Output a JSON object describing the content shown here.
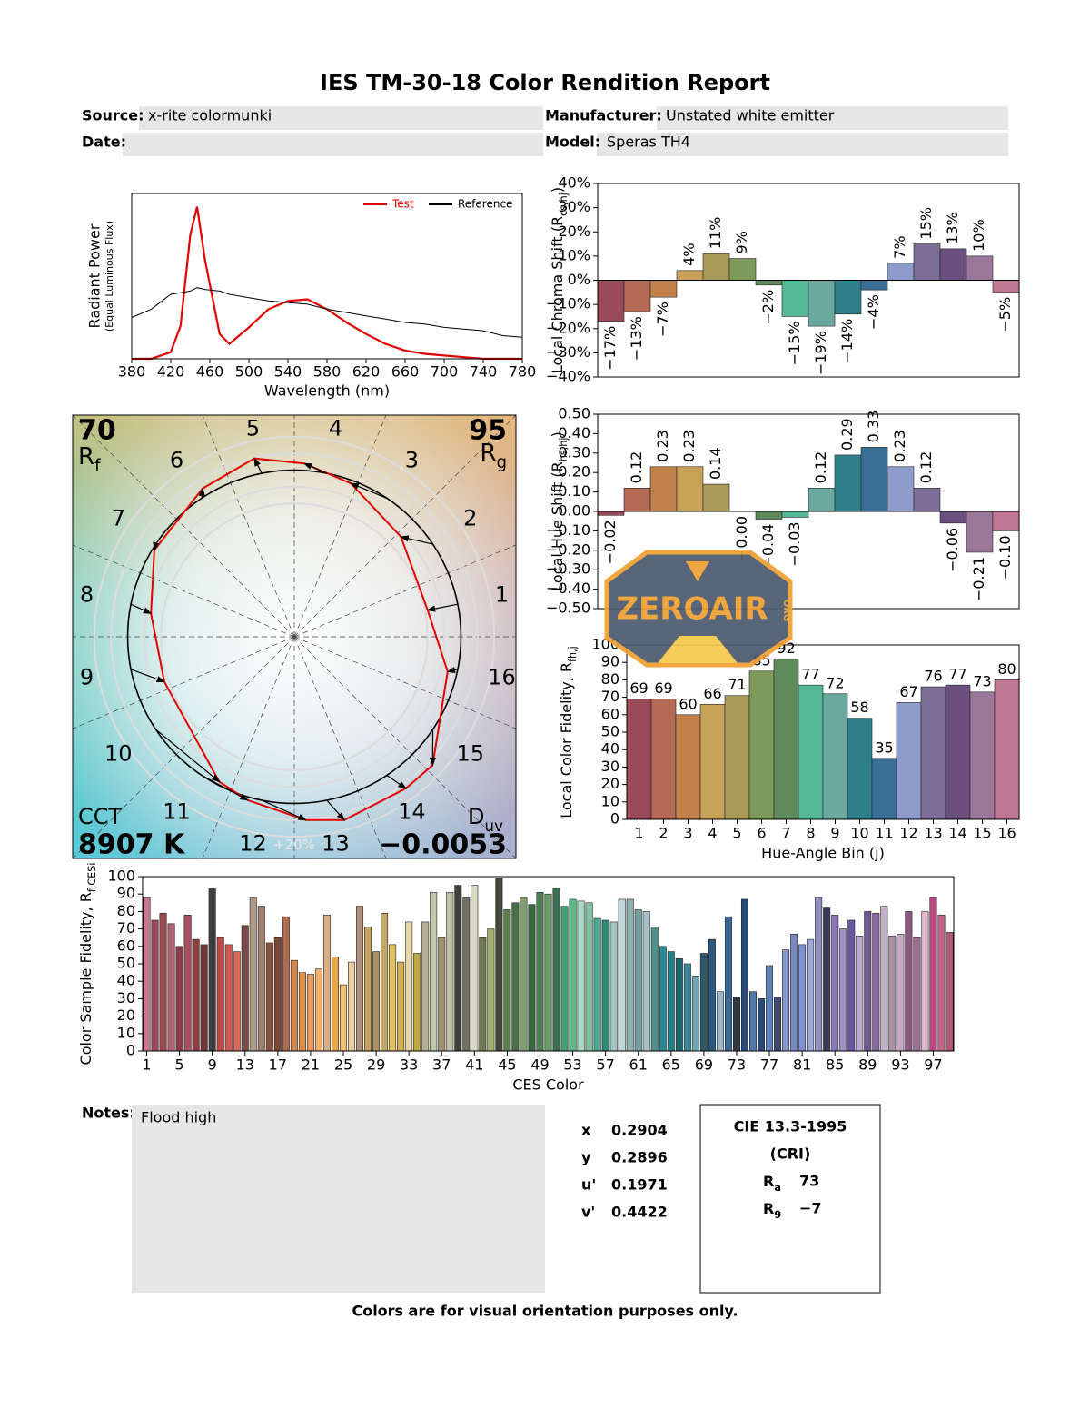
{
  "header": {
    "title": "IES TM-30-18 Color Rendition Report",
    "source_label": "Source:",
    "source": "x-rite colormunki",
    "manufacturer_label": "Manufacturer:",
    "manufacturer": "Unstated white emitter",
    "date_label": "Date:",
    "model_label": "Model:",
    "model": "Speras TH4"
  },
  "chart_data": [
    {
      "type": "line",
      "xlabel": "Wavelength (nm)",
      "ylabel": [
        "Radiant Power",
        "(Equal Luminous Flux)"
      ],
      "x": [
        380,
        400,
        420,
        430,
        440,
        447,
        455,
        470,
        480,
        500,
        520,
        540,
        560,
        580,
        600,
        620,
        640,
        660,
        680,
        700,
        720,
        740,
        760,
        780
      ],
      "series": [
        {
          "name": "Test",
          "color": "#e00000",
          "values": [
            0,
            0,
            0.04,
            0.2,
            0.75,
            0.92,
            0.6,
            0.15,
            0.09,
            0.19,
            0.3,
            0.35,
            0.36,
            0.3,
            0.22,
            0.15,
            0.09,
            0.05,
            0.03,
            0.02,
            0.01,
            0,
            0,
            0
          ]
        },
        {
          "name": "Reference",
          "color": "#000000",
          "values": [
            0.25,
            0.3,
            0.39,
            0.4,
            0.41,
            0.43,
            0.42,
            0.41,
            0.39,
            0.37,
            0.35,
            0.34,
            0.33,
            0.3,
            0.28,
            0.26,
            0.24,
            0.22,
            0.21,
            0.19,
            0.18,
            0.17,
            0.14,
            0.13
          ]
        }
      ],
      "xlim": [
        380,
        780
      ],
      "xticks": [
        380,
        420,
        460,
        500,
        540,
        580,
        620,
        660,
        700,
        740,
        780
      ],
      "ylim": [
        0,
        1
      ],
      "legend": "upper right"
    },
    {
      "type": "bar",
      "ylabel": {
        "text": "Local Chroma Shift (R",
        "sub": "cs,hj",
        "end": ")"
      },
      "values": [
        -17,
        -13,
        -7,
        4,
        11,
        9,
        -2,
        -15,
        -19,
        -14,
        -4,
        7,
        15,
        13,
        10,
        -5
      ],
      "value_labels": [
        "−17%",
        "−13%",
        "−7%",
        "4%",
        "11%",
        "9%",
        "−2%",
        "−15%",
        "−19%",
        "−14%",
        "−4%",
        "7%",
        "15%",
        "13%",
        "10%",
        "−5%"
      ],
      "colors": [
        "#9b4a5a",
        "#b46a55",
        "#c0824a",
        "#c9a25a",
        "#a99a5a",
        "#7e9a5a",
        "#5e8a5e",
        "#52b896",
        "#6aa8a0",
        "#2f7f8a",
        "#3a6f95",
        "#8d9ccc",
        "#7c6e96",
        "#6b4f7e",
        "#9b7899",
        "#c07894"
      ],
      "ylim": [
        -40,
        40
      ],
      "yticks": [
        {
          "value": -40,
          "label": "−40%"
        },
        {
          "value": -30,
          "label": "−30%"
        },
        {
          "value": -20,
          "label": "−20%"
        },
        {
          "value": -10,
          "label": "−10%"
        },
        {
          "value": 0,
          "label": "0%"
        },
        {
          "value": 10,
          "label": "10%"
        },
        {
          "value": 20,
          "label": "20%"
        },
        {
          "value": 30,
          "label": "30%"
        },
        {
          "value": 40,
          "label": "40%"
        }
      ]
    },
    {
      "type": "bar",
      "ylabel": {
        "text": "Local Hue Shift (R",
        "sub": "hs,hj",
        "end": ")"
      },
      "values": [
        -0.02,
        0.12,
        0.23,
        0.23,
        0.14,
        -0.0,
        -0.04,
        -0.03,
        0.12,
        0.29,
        0.33,
        0.23,
        0.12,
        -0.06,
        -0.21,
        -0.1
      ],
      "value_labels": [
        "−0.02",
        "0.12",
        "0.23",
        "0.23",
        "0.14",
        "−0.00",
        "−0.04",
        "−0.03",
        "0.12",
        "0.29",
        "0.33",
        "0.23",
        "0.12",
        "−0.06",
        "−0.21",
        "−0.10"
      ],
      "colors": [
        "#9b4a5a",
        "#b46a55",
        "#c0824a",
        "#c9a25a",
        "#a99a5a",
        "#7e9a5a",
        "#5e8a5e",
        "#52b896",
        "#6aa8a0",
        "#2f7f8a",
        "#3a6f95",
        "#8d9ccc",
        "#7c6e96",
        "#6b4f7e",
        "#9b7899",
        "#c07894"
      ],
      "ylim": [
        -0.5,
        0.5
      ],
      "yticks": [
        {
          "value": -0.5,
          "label": "−0.50"
        },
        {
          "value": -0.4,
          "label": "−0.40"
        },
        {
          "value": -0.3,
          "label": "−0.30"
        },
        {
          "value": -0.2,
          "label": "−0.20"
        },
        {
          "value": -0.1,
          "label": "−0.10"
        },
        {
          "value": 0,
          "label": "0.00"
        },
        {
          "value": 0.1,
          "label": "0.10"
        },
        {
          "value": 0.2,
          "label": "0.20"
        },
        {
          "value": 0.3,
          "label": "0.30"
        },
        {
          "value": 0.4,
          "label": "0.40"
        },
        {
          "value": 0.5,
          "label": "0.50"
        }
      ]
    },
    {
      "type": "bar",
      "xlabel": "Hue-Angle Bin (j)",
      "ylabel": {
        "text": "Local Color Fidelity, R",
        "sub": "fh,j"
      },
      "categories": [
        "1",
        "2",
        "3",
        "4",
        "5",
        "6",
        "7",
        "8",
        "9",
        "10",
        "11",
        "12",
        "13",
        "14",
        "15",
        "16"
      ],
      "values": [
        69,
        69,
        60,
        66,
        71,
        85,
        92,
        77,
        72,
        58,
        35,
        67,
        76,
        77,
        73,
        80
      ],
      "data_labels": true,
      "colors": [
        "#9b4a5a",
        "#b46a55",
        "#c0824a",
        "#c9a25a",
        "#a99a5a",
        "#7e9a5a",
        "#5e8a5e",
        "#52b896",
        "#6aa8a0",
        "#2f7f8a",
        "#3a6f95",
        "#8d9ccc",
        "#7c6e96",
        "#6b4f7e",
        "#9b7899",
        "#c07894"
      ],
      "ylim": [
        0,
        100
      ],
      "yticks": [
        0,
        10,
        20,
        30,
        40,
        50,
        60,
        70,
        80,
        90,
        100
      ]
    },
    {
      "type": "bar",
      "xlabel": "CES Color",
      "ylabel": {
        "text": "Color Sample Fidelity, R",
        "sub": "f,CESi"
      },
      "categories": [
        "1",
        null,
        null,
        null,
        "5",
        null,
        null,
        null,
        "9",
        null,
        null,
        null,
        "13",
        null,
        null,
        null,
        "17",
        null,
        null,
        null,
        "21",
        null,
        null,
        null,
        "25",
        null,
        null,
        null,
        "29",
        null,
        null,
        null,
        "33",
        null,
        null,
        null,
        "37",
        null,
        null,
        null,
        "41",
        null,
        null,
        null,
        "45",
        null,
        null,
        null,
        "49",
        null,
        null,
        null,
        "53",
        null,
        null,
        null,
        "57",
        null,
        null,
        null,
        "61",
        null,
        null,
        null,
        "65",
        null,
        null,
        null,
        "69",
        null,
        null,
        null,
        "73",
        null,
        null,
        null,
        "77",
        null,
        null,
        null,
        "81",
        null,
        null,
        null,
        "85",
        null,
        null,
        null,
        "89",
        null,
        null,
        null,
        "93",
        null,
        null,
        null,
        "97",
        null,
        null
      ],
      "values": [
        88,
        75,
        79,
        73,
        60,
        78,
        64,
        61,
        93,
        65,
        61,
        57,
        72,
        88,
        83,
        62,
        65,
        77,
        52,
        45,
        44,
        47,
        78,
        54,
        38,
        51,
        83,
        71,
        57,
        79,
        61,
        51,
        74,
        56,
        74,
        91,
        65,
        91,
        95,
        88,
        95,
        65,
        70,
        99,
        81,
        85,
        88,
        84,
        91,
        90,
        93,
        83,
        87,
        86,
        85,
        76,
        75,
        74,
        87,
        87,
        81,
        80,
        71,
        60,
        57,
        53,
        50,
        43,
        56,
        64,
        34,
        77,
        31,
        87,
        34,
        30,
        49,
        31,
        58,
        67,
        61,
        64,
        88,
        82,
        78,
        70,
        75,
        66,
        80,
        79,
        83,
        66,
        67,
        80,
        65,
        80,
        88,
        78,
        68
      ],
      "colors": [
        "#c87890",
        "#a04858",
        "#9a4a50",
        "#b06070",
        "#8a3a48",
        "#a85060",
        "#8a4040",
        "#703838",
        "#404040",
        "#c04848",
        "#d05a50",
        "#d86a58",
        "#7a4a48",
        "#b09a88",
        "#a08070",
        "#8a5040",
        "#7a4838",
        "#b06a50",
        "#d08850",
        "#e09048",
        "#e8a060",
        "#f0b070",
        "#d8b088",
        "#e8a848",
        "#f0c070",
        "#e8d0a0",
        "#b09078",
        "#c8a060",
        "#a89060",
        "#c0a868",
        "#e0c060",
        "#d0b050",
        "#e8d8a8",
        "#c0a840",
        "#b8b090",
        "#c0c8b0",
        "#a09070",
        "#c0c0a8",
        "#404038",
        "#707060",
        "#d8d8c0",
        "#707850",
        "#a0b070",
        "#404838",
        "#5a8050",
        "#4a7048",
        "#80a070",
        "#3a6840",
        "#508058",
        "#6a9a68",
        "#3a7050",
        "#40a070",
        "#60b888",
        "#a8d8c0",
        "#80c0a0",
        "#50a890",
        "#308878",
        "#a0c8c0",
        "#c0d8d8",
        "#90b0b0",
        "#70a0a0",
        "#a8c0c8",
        "#50908c",
        "#2a8a90",
        "#208088",
        "#1a6870",
        "#3a8898",
        "#70a8b0",
        "#305868",
        "#2a5a80",
        "#a0b8c8",
        "#3a6898",
        "#303840",
        "#2a4a78",
        "#5078a8",
        "#2a4878",
        "#6080b8",
        "#404a70",
        "#8898c8",
        "#7888c0",
        "#8090d0",
        "#a0a8d8",
        "#9090c0",
        "#3a3a58",
        "#8878b8",
        "#a090c8",
        "#6858a0",
        "#b8a8d0",
        "#705890",
        "#8a6aa0",
        "#c0b0c8",
        "#a890a8",
        "#c8a8c8",
        "#8a5880",
        "#a07090",
        "#e0b8d0",
        "#b84880",
        "#c06888",
        "#b05878"
      ],
      "ylim": [
        0,
        100
      ],
      "yticks": [
        0,
        10,
        20,
        30,
        40,
        50,
        60,
        70,
        80,
        90,
        100
      ]
    },
    {
      "type": "vector",
      "categories": [
        "1",
        "2",
        "3",
        "4",
        "5",
        "6",
        "7",
        "8",
        "9",
        "10",
        "11",
        "12",
        "13",
        "14",
        "15",
        "16"
      ],
      "x": [
        0.8,
        0.64,
        0.34,
        0.06,
        -0.24,
        -0.55,
        -0.84,
        -0.86,
        -0.78,
        -0.45,
        -0.28,
        0.07,
        0.3,
        0.67,
        0.83,
        0.92
      ],
      "y": [
        0.16,
        0.6,
        0.92,
        1.04,
        1.07,
        0.89,
        0.52,
        0.14,
        -0.27,
        -0.87,
        -0.98,
        -1.1,
        -1.1,
        -0.91,
        -0.77,
        -0.21
      ],
      "xlim": [
        -1.33,
        1.33
      ],
      "ylim": [
        -1.33,
        1.33
      ],
      "rings": [
        0.8,
        0.9,
        1.1,
        1.2
      ],
      "ring_label": "+20%",
      "test_color": "#e00000",
      "reference_color": "#000000",
      "rf": {
        "value": 70,
        "symbol": "R",
        "sub": "f"
      },
      "rg": {
        "value": 95,
        "symbol": "R",
        "sub": "g"
      },
      "cct": {
        "label": "CCT",
        "value": "8907 K"
      },
      "duv": {
        "symbol": "D",
        "sub": "uv",
        "value": "−0.0053"
      }
    }
  ],
  "watermark": {
    "text": "ZEROAIR",
    "sub": "ORG"
  },
  "notes": {
    "label": "Notes:",
    "text": "Flood high"
  },
  "chromaticity": [
    {
      "label": "x",
      "value": 0.2904
    },
    {
      "label": "y",
      "value": 0.2896
    },
    {
      "label": "u'",
      "value": 0.1971
    },
    {
      "label": "v'",
      "value": 0.4422
    }
  ],
  "cri": {
    "title": "CIE 13.3-1995",
    "subtitle": "(CRI)",
    "ra": {
      "symbol": "R",
      "sub": "a",
      "value": 73
    },
    "r9": {
      "symbol": "R",
      "sub": "9",
      "value": "−7"
    }
  },
  "footer": "Colors are for visual orientation purposes only."
}
